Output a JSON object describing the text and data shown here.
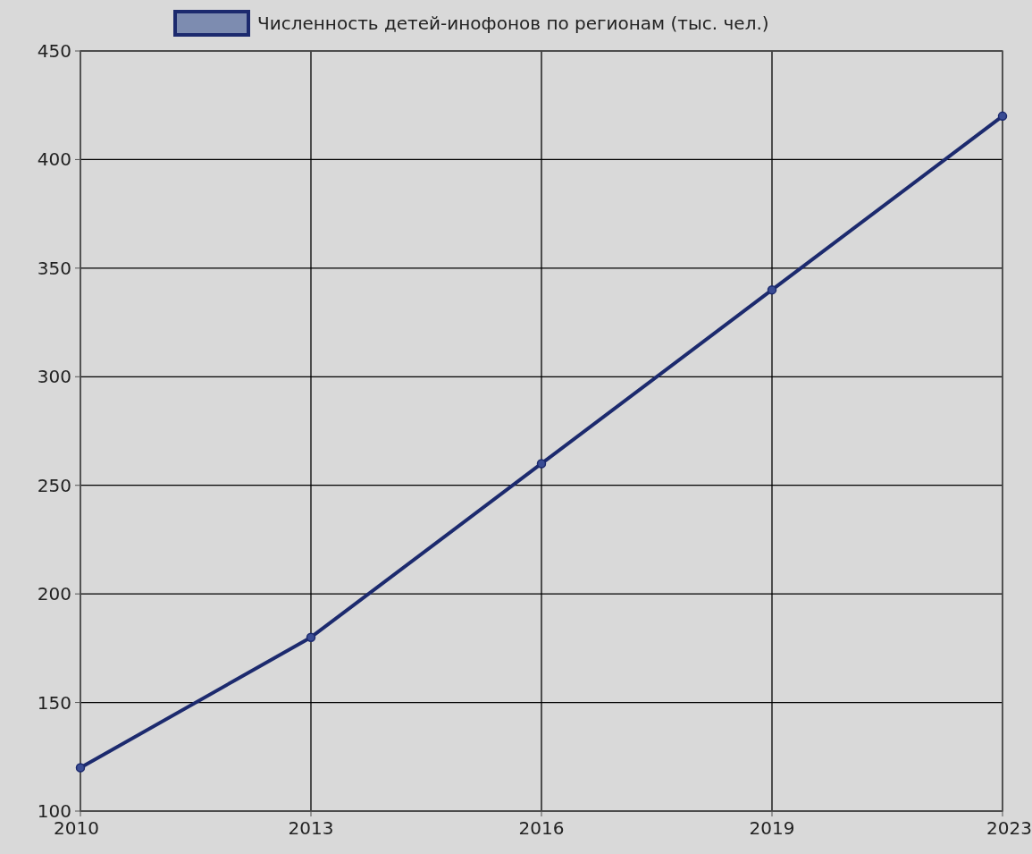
{
  "chart_data": {
    "type": "line",
    "categories": [
      "2010",
      "2013",
      "2016",
      "2019",
      "2023"
    ],
    "series": [
      {
        "name": "Численность детей-инофонов по регионам (тыс. чел.)",
        "color": "#1c2a6e",
        "values": [
          120,
          180,
          260,
          340,
          420
        ]
      }
    ],
    "ylim": [
      100,
      450
    ],
    "yticks": [
      100,
      150,
      200,
      250,
      300,
      350,
      400,
      450
    ],
    "grid": true,
    "legend": "top",
    "marker": "circle",
    "line_style": "solid"
  }
}
